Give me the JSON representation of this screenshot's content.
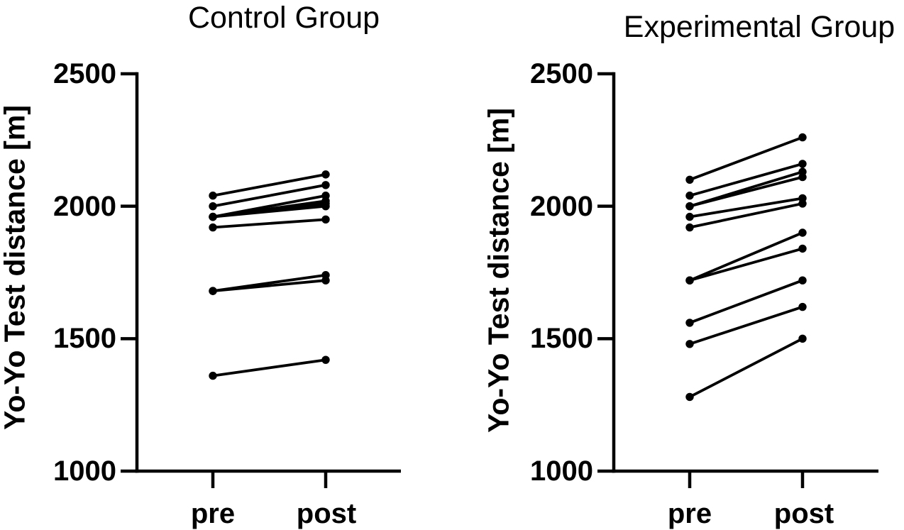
{
  "figure": {
    "background_color": "#ffffff",
    "ink_color": "#000000"
  },
  "chart_data": [
    {
      "type": "line",
      "subtype": "paired-slope-pre-post",
      "title": "Control Group",
      "ylabel": "Yo-Yo Test distance [m]",
      "xlabel": "",
      "x_categories": [
        "pre",
        "post"
      ],
      "y_ticks": [
        2500,
        2000,
        1500,
        1000
      ],
      "ylim": [
        1000,
        2500
      ],
      "grid": false,
      "legend": "none",
      "marker": "filled-circle",
      "series": [
        {
          "values": [
            2040,
            2120
          ]
        },
        {
          "values": [
            2000,
            2080
          ]
        },
        {
          "values": [
            1960,
            2040
          ]
        },
        {
          "values": [
            1960,
            2020
          ]
        },
        {
          "values": [
            1960,
            2010
          ]
        },
        {
          "values": [
            1960,
            2000
          ]
        },
        {
          "values": [
            1920,
            1950
          ]
        },
        {
          "values": [
            1680,
            1740
          ]
        },
        {
          "values": [
            1680,
            1720
          ]
        },
        {
          "values": [
            1360,
            1420
          ]
        }
      ]
    },
    {
      "type": "line",
      "subtype": "paired-slope-pre-post",
      "title": "Experimental Group",
      "ylabel": "Yo-Yo Test distance [m]",
      "xlabel": "",
      "x_categories": [
        "pre",
        "post"
      ],
      "y_ticks": [
        2500,
        2000,
        1500,
        1000
      ],
      "ylim": [
        1000,
        2500
      ],
      "grid": false,
      "legend": "none",
      "marker": "filled-circle",
      "series": [
        {
          "values": [
            2100,
            2260
          ]
        },
        {
          "values": [
            2040,
            2160
          ]
        },
        {
          "values": [
            2000,
            2130
          ]
        },
        {
          "values": [
            2000,
            2110
          ]
        },
        {
          "values": [
            1960,
            2030
          ]
        },
        {
          "values": [
            1920,
            2010
          ]
        },
        {
          "values": [
            1720,
            1900
          ]
        },
        {
          "values": [
            1720,
            1840
          ]
        },
        {
          "values": [
            1560,
            1720
          ]
        },
        {
          "values": [
            1480,
            1620
          ]
        },
        {
          "values": [
            1280,
            1500
          ]
        }
      ]
    }
  ]
}
